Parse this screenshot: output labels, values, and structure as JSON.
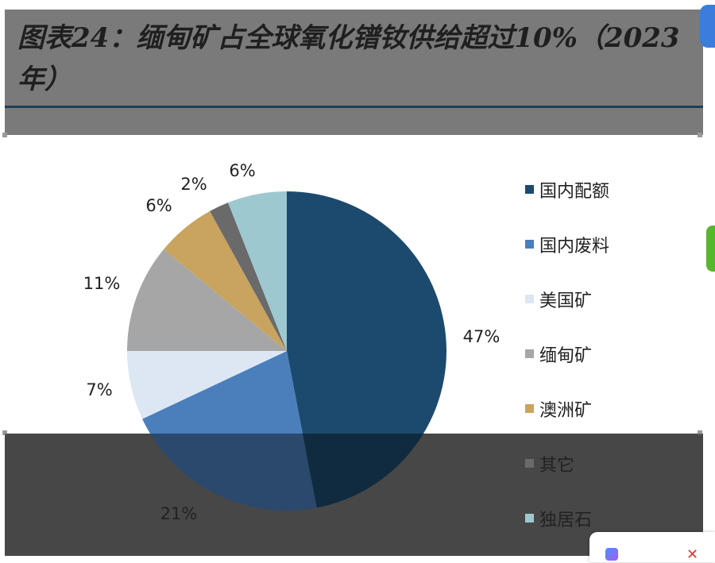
{
  "title": "图表24：缅甸矿占全球氧化镨钕供给超过10%（2023年）",
  "chart_data": {
    "type": "pie",
    "start": "12 o'clock",
    "direction": "clockwise",
    "slices": [
      {
        "label": "国内配额",
        "value": 47,
        "text": "47%",
        "color": "#1c4a6e"
      },
      {
        "label": "国内废料",
        "value": 21,
        "text": "21%",
        "color": "#4a7fbb"
      },
      {
        "label": "美国矿",
        "value": 7,
        "text": "7%",
        "color": "#dde7f3"
      },
      {
        "label": "缅甸矿",
        "value": 11,
        "text": "11%",
        "color": "#a6a6a6"
      },
      {
        "label": "澳洲矿",
        "value": 6,
        "text": "6%",
        "color": "#c9a45f"
      },
      {
        "label": "其它",
        "value": 2,
        "text": "2%",
        "color": "#6a6a6a"
      },
      {
        "label": "独居石",
        "value": 6,
        "text": "6%",
        "color": "#9ec8d0"
      }
    ],
    "legend": "right"
  }
}
